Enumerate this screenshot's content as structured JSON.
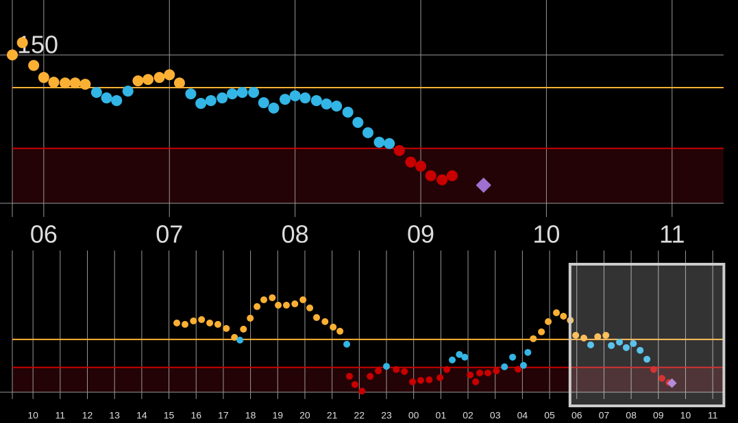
{
  "chart_data": [
    {
      "type": "scatter",
      "xlim": [
        29.75,
        35.41
      ],
      "ylim": [
        23,
        197
      ],
      "xticks": [
        {
          "value": 30,
          "label": "06"
        },
        {
          "value": 31,
          "label": "07"
        },
        {
          "value": 32,
          "label": "08"
        },
        {
          "value": 33,
          "label": "09"
        },
        {
          "value": 34,
          "label": "10"
        },
        {
          "value": 35,
          "label": "11"
        }
      ],
      "yticks": [
        150
      ],
      "high": 122,
      "low": 70,
      "colors": {
        "high": "#fbb034",
        "in_range": "#33b5e5",
        "low": "#c80000",
        "marker": "#a070d0",
        "high_line": "#fbb034",
        "low_line": "#c80000",
        "low_band": "#240306"
      },
      "x": [
        29.75,
        29.83,
        29.92,
        30.0,
        30.08,
        30.17,
        30.25,
        30.33,
        30.42,
        30.5,
        30.58,
        30.67,
        30.75,
        30.83,
        30.92,
        31.0,
        31.08,
        31.17,
        31.25,
        31.33,
        31.42,
        31.5,
        31.58,
        31.67,
        31.75,
        31.83,
        31.92,
        32.0,
        32.08,
        32.17,
        32.25,
        32.33,
        32.42,
        32.5,
        32.58,
        32.67,
        32.75,
        32.83,
        32.92,
        33.0,
        33.08,
        33.17,
        33.25
      ],
      "values": [
        150,
        160.5,
        141,
        130.7,
        126.6,
        126,
        126,
        124.9,
        117.9,
        113.2,
        110.9,
        119,
        127.8,
        129,
        130.7,
        133,
        126,
        116.7,
        108.5,
        110.9,
        113.2,
        116.7,
        117.9,
        117.9,
        109.1,
        104.5,
        112,
        115,
        113.2,
        110.9,
        108,
        106.2,
        101,
        92.2,
        83.4,
        75.3,
        74.1,
        68.2,
        58.3,
        54.8,
        46.6,
        43.1,
        46.6
      ],
      "marker": {
        "x": 33.5,
        "y": 38.5
      }
    },
    {
      "type": "scatter",
      "xlim": [
        9.24,
        35.4
      ],
      "ylim": [
        24,
        287
      ],
      "xticks": [
        10,
        11,
        12,
        13,
        14,
        15,
        16,
        17,
        18,
        19,
        20,
        21,
        22,
        23,
        {
          "value": 24,
          "label": "00"
        },
        {
          "value": 25,
          "label": "01"
        },
        {
          "value": 26,
          "label": "02"
        },
        {
          "value": 27,
          "label": "03"
        },
        {
          "value": 28,
          "label": "04"
        },
        {
          "value": 29,
          "label": "05"
        },
        {
          "value": 30,
          "label": "06"
        },
        {
          "value": 31,
          "label": "07"
        },
        {
          "value": 32,
          "label": "08"
        },
        {
          "value": 33,
          "label": "09"
        },
        {
          "value": 34,
          "label": "10"
        },
        {
          "value": 35,
          "label": "11"
        }
      ],
      "yticks": [],
      "high": 122,
      "low": 70,
      "colors": {
        "high": "#fbb034",
        "in_range": "#33b5e5",
        "low": "#c80000",
        "marker": "#a070d0",
        "high_line": "#fbb034",
        "low_line": "#c80000",
        "low_band": "#240306"
      },
      "x": [
        15.29,
        15.59,
        15.9,
        16.2,
        16.5,
        16.8,
        17.11,
        17.41,
        17.61,
        17.74,
        17.99,
        18.24,
        18.49,
        18.8,
        19.02,
        19.32,
        19.63,
        19.93,
        20.18,
        20.43,
        20.74,
        21.04,
        21.29,
        21.54,
        21.64,
        21.84,
        22.1,
        22.4,
        22.7,
        23.0,
        23.36,
        23.66,
        23.96,
        24.26,
        24.57,
        24.97,
        25.22,
        25.42,
        25.68,
        25.88,
        26.08,
        26.28,
        26.43,
        26.73,
        27.04,
        27.34,
        27.64,
        27.84,
        28.04,
        28.2,
        28.4,
        28.7,
        28.95,
        29.25,
        29.51,
        29.76,
        29.96,
        30.26,
        30.51,
        30.77,
        31.07,
        31.27,
        31.57,
        31.82,
        32.08,
        32.33,
        32.58,
        32.83,
        33.13,
        33.39
      ],
      "values": [
        152.5,
        149.9,
        156.3,
        158.8,
        152.5,
        149.9,
        142.3,
        125.8,
        120.7,
        141,
        161.3,
        182.9,
        195.6,
        199.4,
        185.5,
        185.5,
        188,
        195.6,
        180.4,
        162.6,
        155,
        144.8,
        137.2,
        113.1,
        53.5,
        38.2,
        26,
        53.5,
        63.6,
        72,
        66.2,
        62.4,
        43.3,
        45.9,
        47.1,
        50.9,
        66.2,
        83.9,
        94.1,
        89,
        56,
        43.3,
        59.8,
        59.8,
        63.6,
        71.2,
        89,
        66.7,
        73.8,
        97.9,
        123.3,
        136,
        155,
        171.5,
        165,
        157.5,
        129.6,
        124.5,
        111.8,
        127,
        129.6,
        110.6,
        116.9,
        106.8,
        114.4,
        101.7,
        85.2,
        66.2,
        49.7,
        42
      ],
      "marker": {
        "x": 33.5,
        "y": 40.8
      }
    }
  ]
}
